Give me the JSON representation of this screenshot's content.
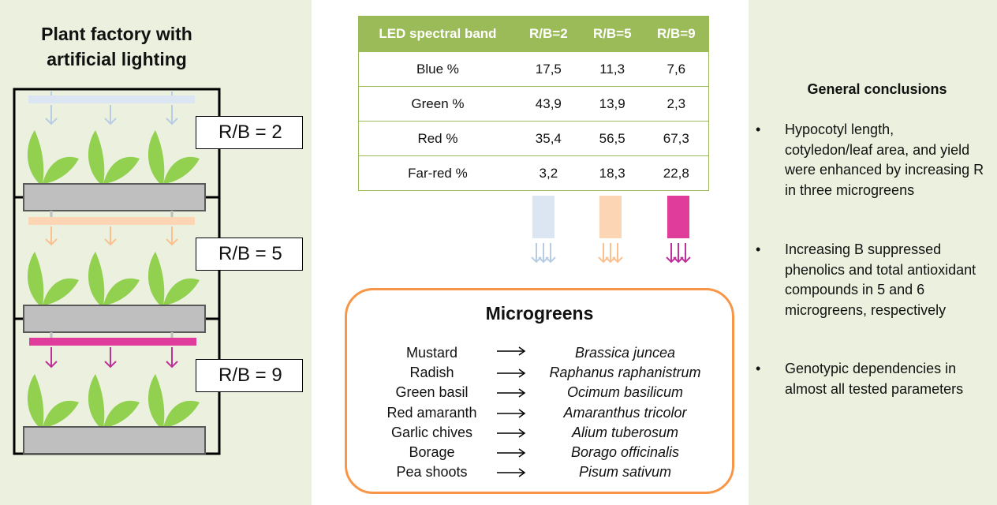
{
  "factory": {
    "title_line1": "Plant factory with",
    "title_line2": "artificial lighting",
    "levels": [
      {
        "label": "R/B = 2",
        "light_color": "#dce6f2"
      },
      {
        "label": "R/B = 5",
        "light_color": "#fcd5b5"
      },
      {
        "label": "R/B = 9",
        "light_color": "#e03c9c"
      }
    ]
  },
  "led_table": {
    "headers": [
      "LED spectral band",
      "R/B=2",
      "R/B=5",
      "R/B=9"
    ],
    "rows": [
      {
        "band": "Blue %",
        "v1": "17,5",
        "v2": "11,3",
        "v3": "7,6"
      },
      {
        "band": "Green %",
        "v1": "43,9",
        "v2": "13,9",
        "v3": "2,3"
      },
      {
        "band": "Red %",
        "v1": "35,4",
        "v2": "56,5",
        "v3": "67,3"
      },
      {
        "band": "Far-red %",
        "v1": "3,2",
        "v2": "18,3",
        "v3": "22,8"
      }
    ],
    "header_color": "#9bbb59"
  },
  "microgreens": {
    "title": "Microgreens",
    "items": [
      {
        "name": "Mustard",
        "latin": "Brassica juncea"
      },
      {
        "name": "Radish",
        "latin": "Raphanus raphanistrum"
      },
      {
        "name": "Green basil",
        "latin": "Ocimum basilicum"
      },
      {
        "name": "Red amaranth",
        "latin": "Amaranthus tricolor"
      },
      {
        "name": "Garlic chives",
        "latin": "Alium tuberosum"
      },
      {
        "name": "Borage",
        "latin": "Borago officinalis"
      },
      {
        "name": "Pea shoots",
        "latin": "Pisum sativum"
      }
    ],
    "border_color": "#f79646"
  },
  "conclusions": {
    "title": "General conclusions",
    "bullets": [
      {
        "line1": "Hypocotyl length,",
        "line2": "cotyledon/leaf area, and yield",
        "line3": "were enhanced by increasing R",
        "line4": "in three microgreens"
      },
      {
        "line1": "Increasing B suppressed",
        "line2": "phenolics and total antioxidant",
        "line3": "compounds in 5 and 6",
        "line4": "microgreens, respectively"
      },
      {
        "line1": "Genotypic dependencies in",
        "line2": "almost all tested parameters",
        "line3": "",
        "line4": ""
      }
    ],
    "bullet_char": "•"
  },
  "colors": {
    "panel_bg": "#ebf1de",
    "leaf": "#92d050",
    "tray": "#bfbfbf"
  }
}
